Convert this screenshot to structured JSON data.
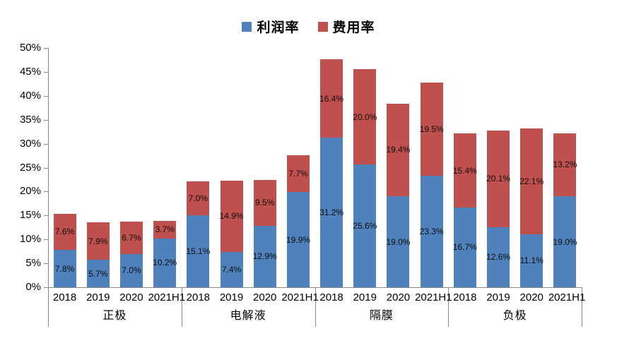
{
  "legend": {
    "items": [
      {
        "label": "利润率",
        "color": "#4F81BD"
      },
      {
        "label": "费用率",
        "color": "#C0504D"
      }
    ]
  },
  "chart_data": {
    "type": "bar",
    "stacked": true,
    "title": "",
    "legend_position": "top",
    "gridlines": false,
    "groups": [
      "正极",
      "电解液",
      "隔膜",
      "负极"
    ],
    "years": [
      "2018",
      "2019",
      "2020",
      "2021H1"
    ],
    "series": [
      {
        "name": "利润率",
        "color": "#4F81BD",
        "values": [
          [
            7.8,
            5.7,
            7.0,
            10.2
          ],
          [
            15.1,
            7.4,
            12.9,
            19.9
          ],
          [
            31.2,
            25.6,
            19.0,
            23.3
          ],
          [
            16.7,
            12.6,
            11.1,
            19.0
          ]
        ]
      },
      {
        "name": "费用率",
        "color": "#C0504D",
        "values": [
          [
            7.6,
            7.9,
            6.7,
            3.7
          ],
          [
            7.0,
            14.9,
            9.5,
            7.7
          ],
          [
            16.4,
            20.0,
            19.4,
            19.5
          ],
          [
            15.4,
            20.1,
            22.1,
            13.2
          ]
        ]
      }
    ],
    "y_axis": {
      "min": 0,
      "max": 50,
      "step": 5,
      "suffix": "%"
    },
    "label_suffix": "%",
    "label_decimals": 1
  }
}
